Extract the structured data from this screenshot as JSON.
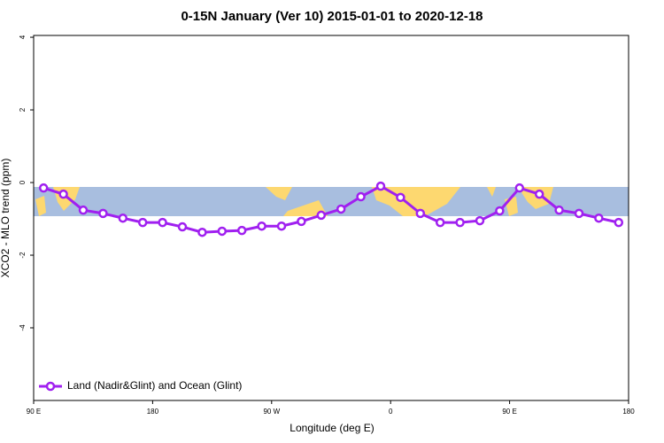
{
  "chart_data": {
    "type": "line",
    "title": "0-15N January (Ver 10)   2015-01-01 to 2020-12-18",
    "x_label": "Longitude (deg E)",
    "y_label": "XCO2 - MLO trend (ppm)",
    "xlim": [
      90,
      540
    ],
    "xticks": [
      {
        "value": 90,
        "label": "90 E"
      },
      180,
      {
        "value": 270,
        "label": "90 W"
      },
      {
        "value": 360,
        "label": "0"
      },
      {
        "value": 450,
        "label": "90 E"
      },
      {
        "value": 540,
        "label": "180"
      }
    ],
    "ylim": [
      -6,
      4.05
    ],
    "yticks": [
      -4,
      -2,
      0,
      2,
      4
    ],
    "legend": "bottom-left",
    "x": [
      97.5,
      112.5,
      127.5,
      142.5,
      157.5,
      172.5,
      187.5,
      202.5,
      217.5,
      232.5,
      247.5,
      262.5,
      277.5,
      292.5,
      307.5,
      322.5,
      337.5,
      352.5,
      367.5,
      382.5,
      397.5,
      412.5,
      427.5,
      442.5,
      457.5,
      472.5,
      487.5,
      502.5,
      517.5,
      532.5
    ],
    "series": [
      {
        "name": "Land (Nadir&Glint) and Ocean (Glint)",
        "color": "#a020f0",
        "values": [
          -0.15,
          -0.32,
          -0.76,
          -0.85,
          -0.98,
          -1.1,
          -1.1,
          -1.22,
          -1.37,
          -1.34,
          -1.32,
          -1.2,
          -1.2,
          -1.07,
          -0.9,
          -0.73,
          -0.39,
          -0.1,
          -0.41,
          -0.85,
          -1.1,
          -1.1,
          -1.05,
          -0.78,
          -0.15,
          -0.32,
          -0.76,
          -0.85,
          -0.98,
          -1.1
        ]
      }
    ]
  }
}
